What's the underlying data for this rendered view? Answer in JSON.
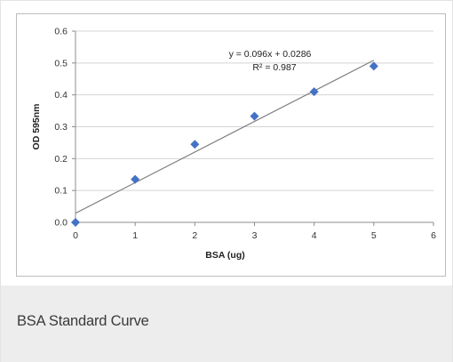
{
  "caption": "BSA Standard Curve",
  "chart_data": {
    "type": "scatter",
    "title": "",
    "xlabel": "BSA (ug)",
    "ylabel": "OD 595nm",
    "xlim": [
      0,
      6
    ],
    "ylim": [
      0,
      0.6
    ],
    "x_ticks": [
      "0",
      "1",
      "2",
      "3",
      "4",
      "5",
      "6"
    ],
    "y_ticks": [
      "0.0",
      "0.1",
      "0.2",
      "0.3",
      "0.4",
      "0.5",
      "0.6"
    ],
    "grid": "horizontal",
    "legend": "none",
    "series": [
      {
        "x": [
          0,
          1,
          2,
          3,
          4,
          5
        ],
        "y": [
          0.0,
          0.135,
          0.245,
          0.333,
          0.41,
          0.49
        ],
        "color": "#4472c4",
        "marker": "diamond"
      }
    ],
    "trendline": {
      "type": "linear",
      "slope": 0.096,
      "intercept": 0.0286,
      "x_range": [
        0,
        5
      ],
      "color": "#7f7f7f",
      "equation": "y = 0.096x + 0.0286",
      "r_squared": "R² = 0.987"
    }
  }
}
